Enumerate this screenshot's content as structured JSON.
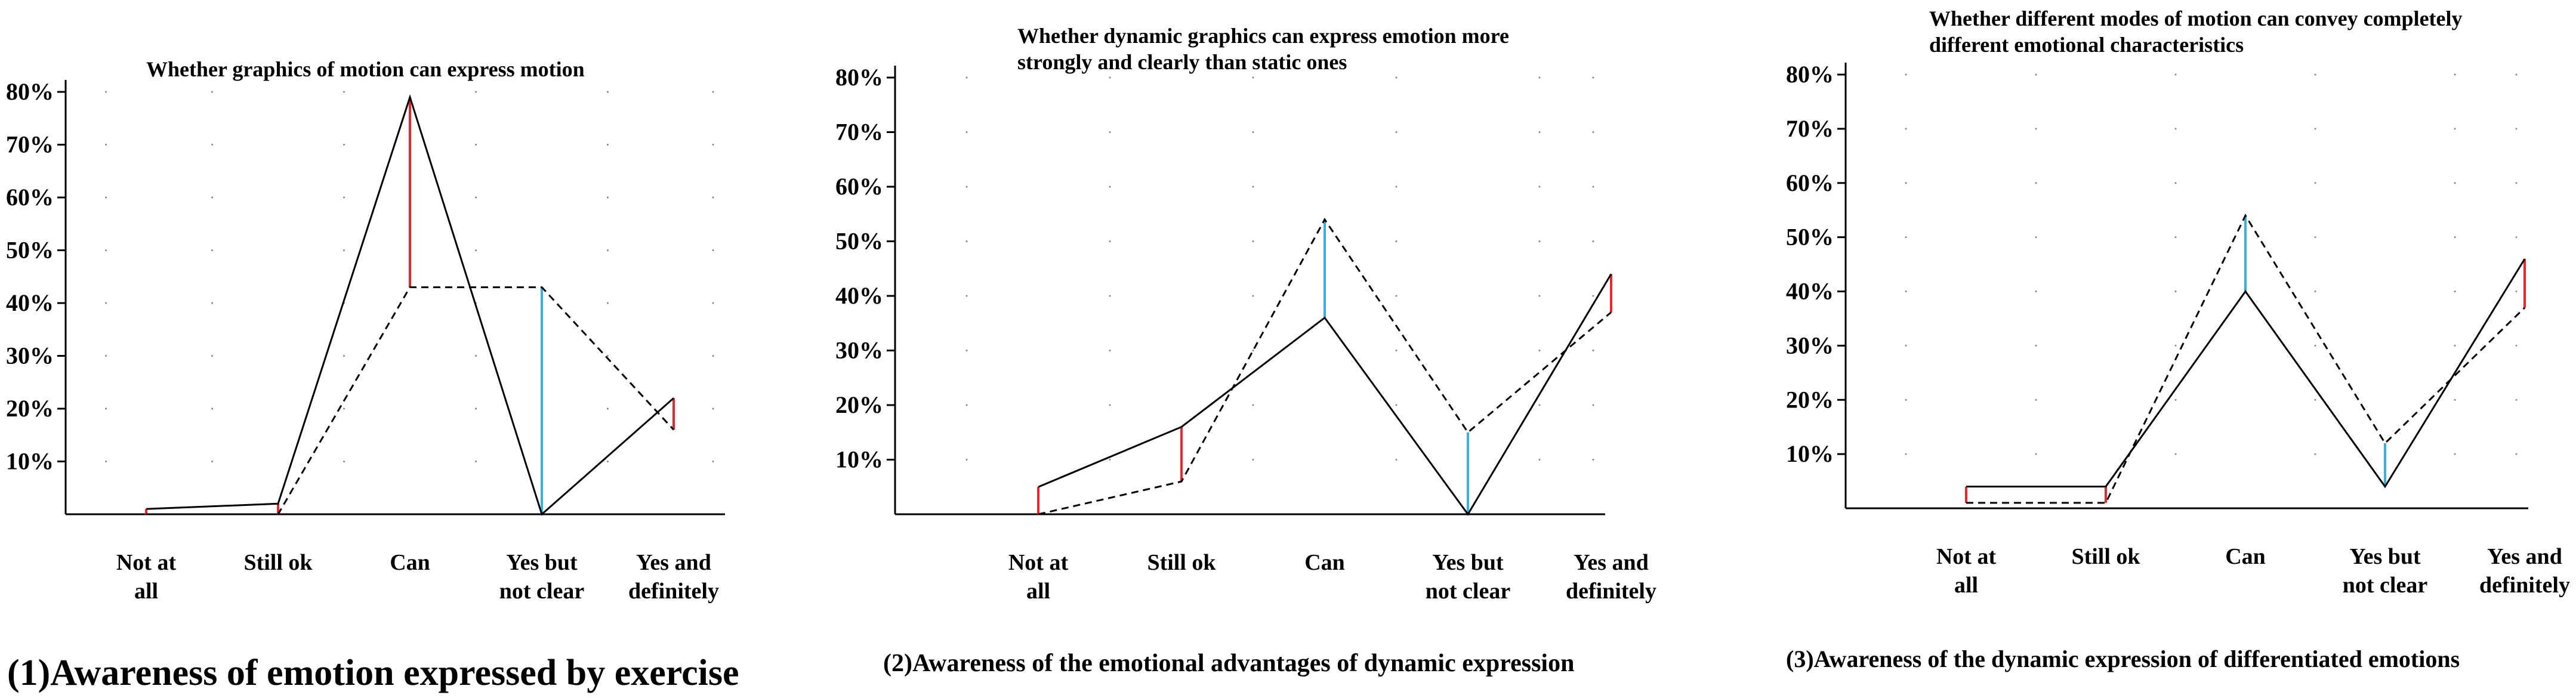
{
  "colors": {
    "line": "#000000",
    "increase": "#e8262b",
    "decrease": "#3aaedc"
  },
  "chart_data": [
    {
      "type": "line",
      "title": "Whether graphics of motion can express motion",
      "categories": [
        "Not at all",
        "Still ok",
        "Can",
        "Yes but not clear",
        "Yes and definitely"
      ],
      "y_ticks": [
        "10%",
        "20%",
        "30%",
        "40%",
        "50%",
        "60%",
        "70%",
        "80%"
      ],
      "ylim": [
        0,
        80
      ],
      "series": [
        {
          "style": "solid",
          "values": [
            1,
            2,
            79,
            0,
            22
          ]
        },
        {
          "style": "dashed",
          "values": [
            0,
            0,
            43,
            43,
            16
          ]
        }
      ],
      "caption": "(1)Awareness of emotion expressed by exercise"
    },
    {
      "type": "line",
      "title": "Whether dynamic graphics can express emotion more strongly and clearly than static ones",
      "categories": [
        "Not at all",
        "Still ok",
        "Can",
        "Yes but not clear",
        "Yes and definitely"
      ],
      "y_ticks": [
        "10%",
        "20%",
        "30%",
        "40%",
        "50%",
        "60%",
        "70%",
        "80%"
      ],
      "ylim": [
        0,
        80
      ],
      "series": [
        {
          "style": "solid",
          "values": [
            5,
            16,
            36,
            0,
            44
          ]
        },
        {
          "style": "dashed",
          "values": [
            0,
            6,
            54,
            15,
            37
          ]
        }
      ],
      "caption": "(2)Awareness of the emotional advantages of dynamic expression"
    },
    {
      "type": "line",
      "title": "Whether different modes of motion can convey completely different emotional characteristics",
      "categories": [
        "Not at all",
        "Still ok",
        "Can",
        "Yes but not clear",
        "Yes and definitely"
      ],
      "y_ticks": [
        "10%",
        "20%",
        "30%",
        "40%",
        "50%",
        "60%",
        "70%",
        "80%"
      ],
      "ylim": [
        0,
        80
      ],
      "series": [
        {
          "style": "solid",
          "values": [
            4,
            4,
            40,
            4,
            46
          ]
        },
        {
          "style": "dashed",
          "values": [
            1,
            1,
            54,
            12,
            37
          ]
        }
      ],
      "caption": "(3)Awareness of the dynamic expression of differentiated emotions"
    }
  ]
}
